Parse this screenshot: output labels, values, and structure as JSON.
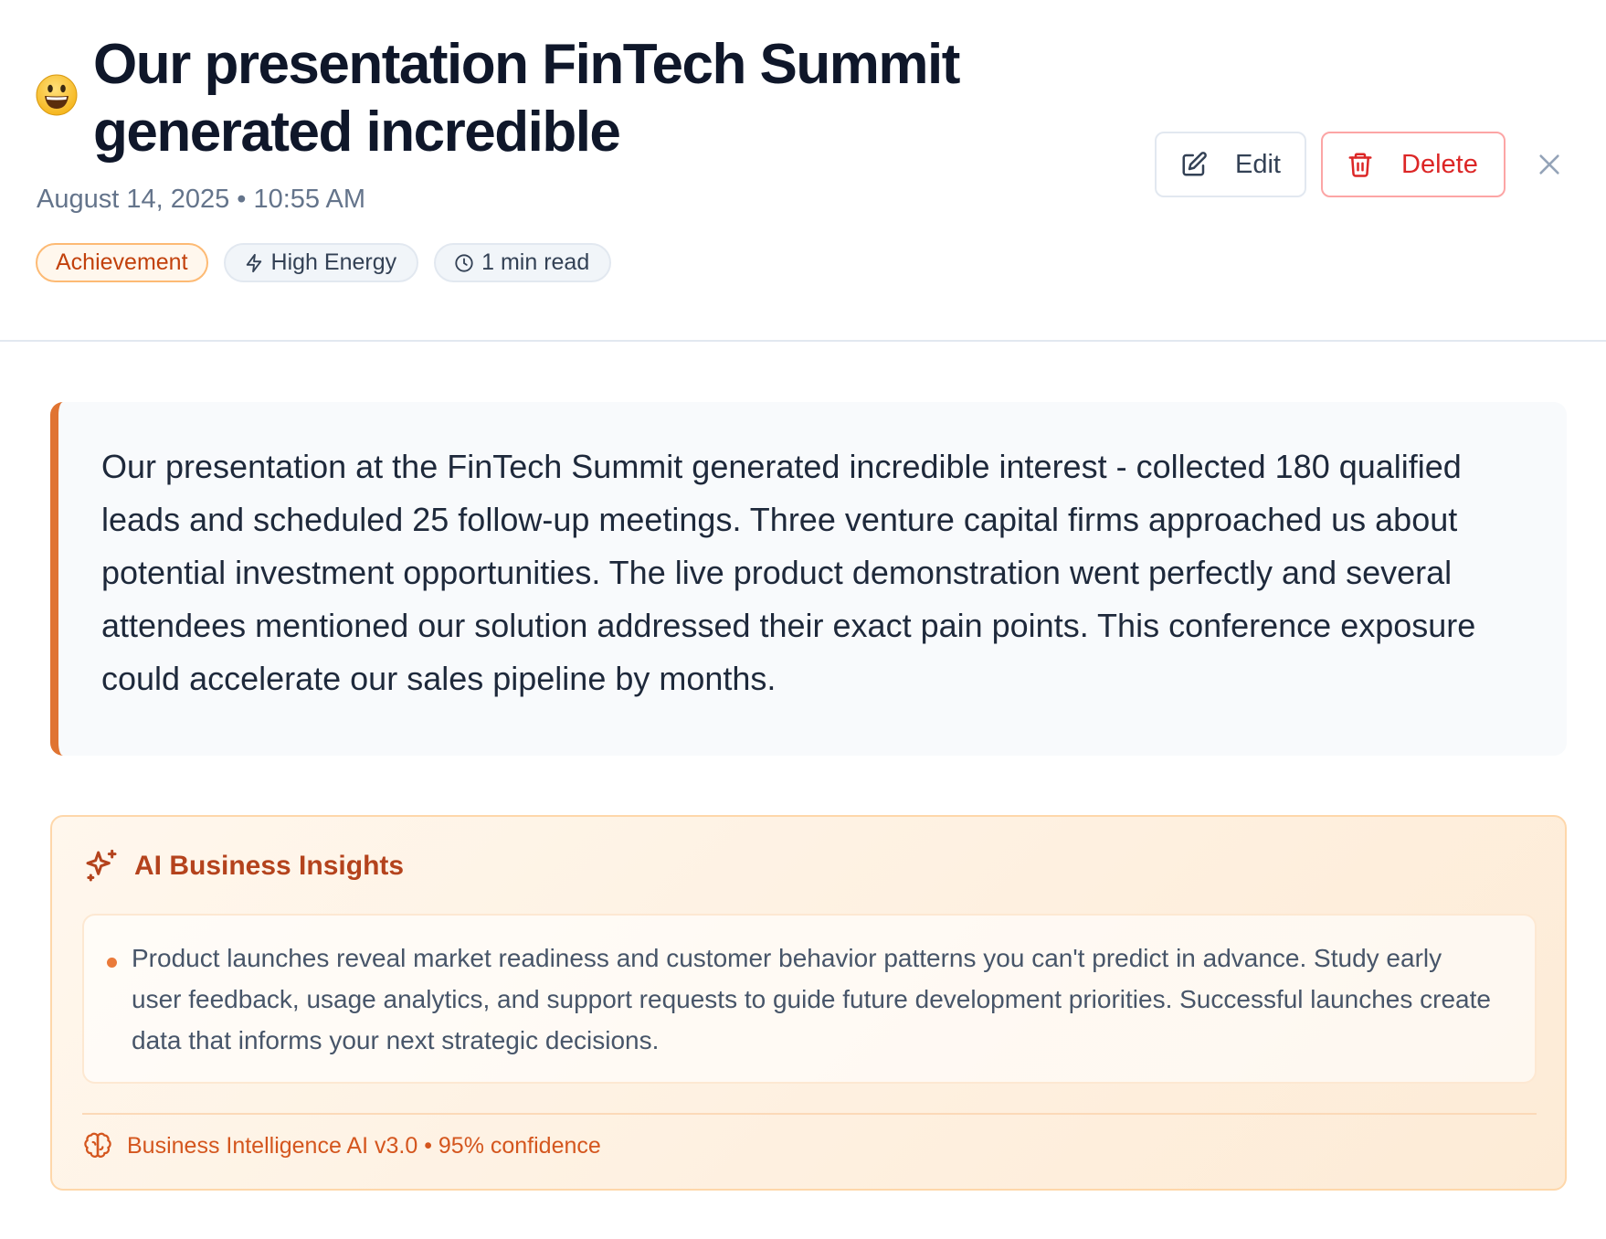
{
  "entry": {
    "emoji_icon": "smiley-face-icon",
    "title": "Our presentation FinTech Summit generated incredible",
    "meta": "August 14, 2025 • 10:55 AM",
    "tags": [
      {
        "label": "Achievement"
      },
      {
        "label": "High Energy",
        "icon": "lightning-icon"
      },
      {
        "label": "1 min read",
        "icon": "clock-icon"
      }
    ],
    "body": "Our presentation at the FinTech Summit generated incredible interest - collected 180 qualified leads and scheduled 25 follow-up meetings. Three venture capital firms approached us about potential investment opportunities. The live product demonstration went perfectly and several attendees mentioned our solution addressed their exact pain points. This conference exposure could accelerate our sales pipeline by months."
  },
  "actions": {
    "edit_label": "Edit",
    "delete_label": "Delete",
    "close_icon": "close-icon"
  },
  "insights": {
    "title": "AI Business Insights",
    "icon": "sparkles-icon",
    "items": [
      "Product launches reveal market readiness and customer behavior patterns you can't predict in advance. Study early user feedback, usage analytics, and support requests to guide future development priorities. Successful launches create data that informs your next strategic decisions."
    ],
    "footer": "Business Intelligence AI v3.0 • 95% confidence",
    "footer_icon": "brain-icon"
  },
  "colors": {
    "accent": "#e07432",
    "delete": "#dc2626",
    "insight_title": "#b4431d"
  }
}
